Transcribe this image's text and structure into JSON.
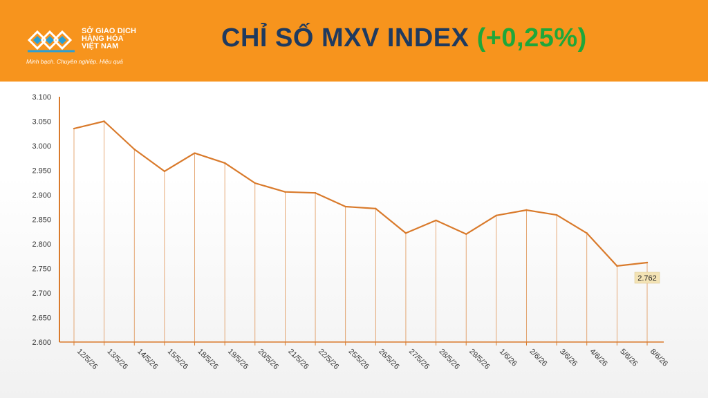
{
  "header": {
    "logo_lines": [
      "SỞ GIAO DỊCH",
      "HÀNG HÓA",
      "VIỆT NAM"
    ],
    "tagline": "Minh bạch. Chuyên nghiệp. Hiệu quả",
    "title_main": "CHỈ SỐ MXV INDEX ",
    "title_change": "(+0,25%)"
  },
  "colors": {
    "header_bg": "#f7941d",
    "line": "#d97a2b",
    "title": "#1f3a5f",
    "positive": "#1fa73a",
    "label_box": "#f3e3b5"
  },
  "chart_data": {
    "type": "line",
    "title": "CHỈ SỐ MXV INDEX (+0,25%)",
    "xlabel": "",
    "ylabel": "",
    "categories": [
      "12/5/26",
      "13/5/26",
      "14/5/26",
      "15/5/26",
      "18/5/26",
      "19/5/26",
      "20/5/26",
      "21/5/26",
      "22/5/26",
      "25/5/26",
      "26/5/26",
      "27/5/26",
      "28/5/26",
      "29/5/26",
      "1/6/26",
      "2/6/26",
      "3/6/26",
      "4/6/26",
      "5/6/26",
      "8/6/26"
    ],
    "values": [
      3035,
      3050,
      2993,
      2948,
      2985,
      2965,
      2924,
      2906,
      2904,
      2876,
      2872,
      2822,
      2848,
      2820,
      2858,
      2869,
      2859,
      2822,
      2755,
      2762
    ],
    "ylim": [
      2600,
      3100
    ],
    "yticks": [
      "2.600",
      "2.650",
      "2.700",
      "2.750",
      "2.800",
      "2.850",
      "2.900",
      "2.950",
      "3.000",
      "3.050",
      "3.100"
    ],
    "last_label": "2.762",
    "grid": false,
    "drop_lines": true
  }
}
